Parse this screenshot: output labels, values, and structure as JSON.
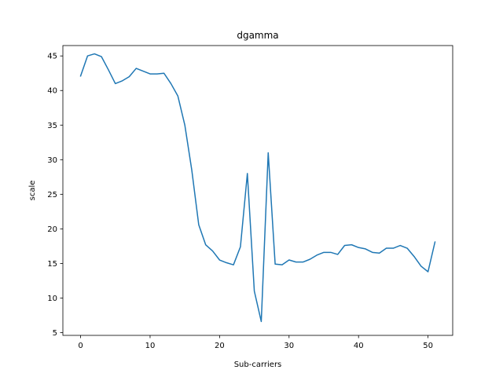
{
  "chart_data": {
    "type": "line",
    "title": "dgamma",
    "xlabel": "Sub-carriers",
    "ylabel": "scale",
    "xlim": [
      -2.55,
      53.55
    ],
    "ylim": [
      4.6,
      46.5
    ],
    "x_ticks": [
      0,
      10,
      20,
      30,
      40,
      50
    ],
    "y_ticks": [
      5,
      10,
      15,
      20,
      25,
      30,
      35,
      40,
      45
    ],
    "grid": false,
    "legend": "none",
    "series": [
      {
        "color": "#1f77b4",
        "x": [
          0,
          1,
          2,
          3,
          4,
          5,
          6,
          7,
          8,
          9,
          10,
          11,
          12,
          13,
          14,
          15,
          16,
          17,
          18,
          19,
          20,
          21,
          22,
          23,
          24,
          25,
          26,
          27,
          28,
          29,
          30,
          31,
          32,
          33,
          34,
          35,
          36,
          37,
          38,
          39,
          40,
          41,
          42,
          43,
          44,
          45,
          46,
          47,
          48,
          49,
          50,
          51
        ],
        "y": [
          42.1,
          45.0,
          45.3,
          44.9,
          43.0,
          41.0,
          41.4,
          42.0,
          43.2,
          42.8,
          42.4,
          42.4,
          42.5,
          41.0,
          39.2,
          35.0,
          28.5,
          20.6,
          17.7,
          16.8,
          15.5,
          15.1,
          14.8,
          17.4,
          28.0,
          11.0,
          6.6,
          31.0,
          14.9,
          14.8,
          15.5,
          15.2,
          15.2,
          15.6,
          16.2,
          16.6,
          16.6,
          16.3,
          17.6,
          17.7,
          17.3,
          17.1,
          16.6,
          16.5,
          17.2,
          17.2,
          17.6,
          17.2,
          16.0,
          14.6,
          13.8,
          18.1
        ]
      }
    ]
  }
}
